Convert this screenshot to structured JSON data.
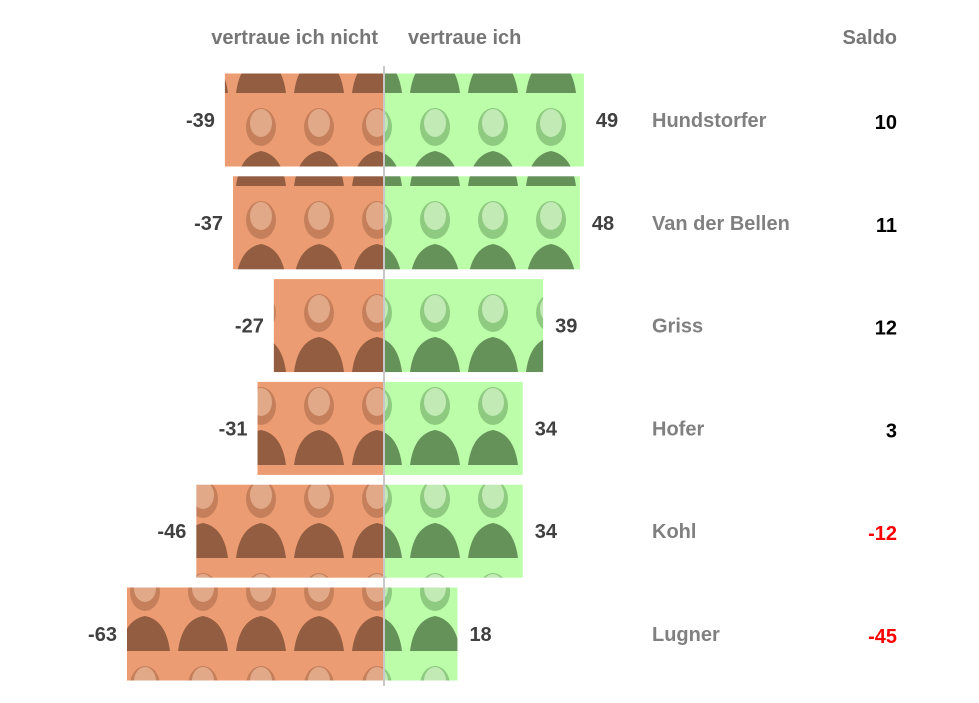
{
  "chart_data": {
    "type": "bar",
    "orientation": "horizontal-diverging",
    "headers": {
      "negative": "vertraue ich nicht",
      "positive": "vertraue ich",
      "saldo": "Saldo"
    },
    "categories": [
      "Hundstorfer",
      "Van der Bellen",
      "Griss",
      "Hofer",
      "Kohl",
      "Lugner"
    ],
    "series": [
      {
        "name": "vertraue ich nicht",
        "values": [
          -39,
          -37,
          -27,
          -31,
          -46,
          -63
        ],
        "color": "#EC9C72"
      },
      {
        "name": "vertraue ich",
        "values": [
          49,
          48,
          39,
          34,
          34,
          18
        ],
        "color": "#BBFDA9"
      }
    ],
    "saldo": [
      10,
      11,
      12,
      3,
      -12,
      -45
    ],
    "saldo_colors": {
      "positive": "#000000",
      "negative": "#FF0000"
    },
    "axis_color": "#C8C8C8"
  }
}
